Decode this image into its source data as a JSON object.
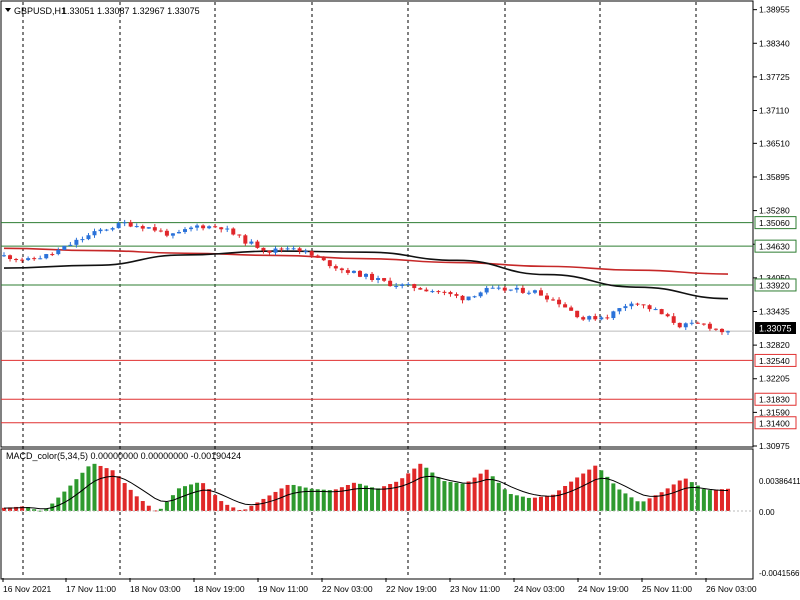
{
  "header": {
    "symbol": "GBPUSD,H1",
    "ohlc": "1.33051 1.33087 1.32967 1.33075"
  },
  "macd_header": "MACD_color(5,34,5) 0.00000000 0.00000000 -0.00190424",
  "colors": {
    "background": "#ffffff",
    "bull": "#2b72d9",
    "bear": "#e0262a",
    "resistance": "#2e7d32",
    "support": "#e03030",
    "macd_pos": "#2e9a2e",
    "macd_neg": "#e02828",
    "ma_fast": "#c62828",
    "ma_slow": "#111111",
    "grid": "#000000"
  },
  "chart_data": [
    {
      "type": "candlestick",
      "symbol": "GBPUSD",
      "timeframe": "H1",
      "last_price": "1.33075",
      "ylim": [
        1.30975,
        1.39095
      ],
      "price_ticks": [
        "1.38955",
        "1.38340",
        "1.37725",
        "1.37110",
        "1.36510",
        "1.35895",
        "1.35280",
        "1.34665",
        "1.34050",
        "1.33435",
        "1.32820",
        "1.32205",
        "1.31590",
        "1.30975"
      ],
      "x_labels": [
        "16 Nov 2021",
        "17 Nov 11:00",
        "18 Nov 03:00",
        "18 Nov 19:00",
        "19 Nov 11:00",
        "22 Nov 03:00",
        "22 Nov 19:00",
        "23 Nov 11:00",
        "24 Nov 03:00",
        "24 Nov 19:00",
        "25 Nov 11:00",
        "26 Nov 03:00"
      ],
      "close_path": [
        1.3445,
        1.3437,
        1.3449,
        1.3472,
        1.3492,
        1.3505,
        1.3497,
        1.3482,
        1.35,
        1.3498,
        1.3472,
        1.3454,
        1.3462,
        1.344,
        1.342,
        1.3408,
        1.3394,
        1.3388,
        1.338,
        1.3368,
        1.3383,
        1.3383,
        1.338,
        1.336,
        1.333,
        1.3335,
        1.3362,
        1.3345,
        1.3318,
        1.332,
        1.3303
      ],
      "levels": {
        "resistance": [
          "1.35060",
          "1.34630",
          "1.33920"
        ],
        "support": [
          "1.32540",
          "1.31830",
          "1.31400"
        ]
      },
      "moving_averages": [
        {
          "values": [
            1.3459,
            1.3455,
            1.345,
            1.3446,
            1.344,
            1.3433,
            1.3426,
            1.3419,
            1.3412
          ]
        },
        {
          "values": [
            1.3423,
            1.3428,
            1.3447,
            1.3454,
            1.3452,
            1.3437,
            1.3411,
            1.3388,
            1.3367
          ]
        }
      ]
    },
    {
      "type": "histogram",
      "title": "MACD_color(5,34,5)",
      "yticks": [
        "0.00386411",
        "0.00",
        "-0.00415669"
      ],
      "ylim": [
        -0.00415669,
        0.00386411
      ]
    }
  ]
}
